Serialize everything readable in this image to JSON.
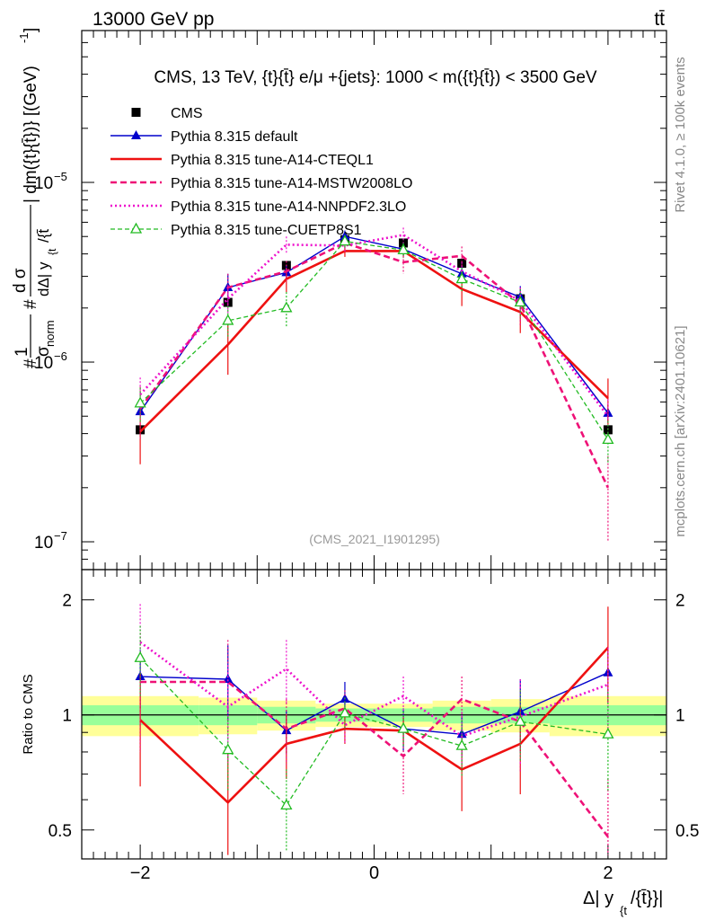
{
  "header": {
    "energy_label": "13000 GeV pp",
    "process_label": "tt̄",
    "rivet_label": "Rivet 4.1.0, ≥ 100k events",
    "site_label": "mcplots.cern.ch [arXiv:2401.10621]",
    "analysis_tag": "(CMS_2021_I1901295)"
  },
  "colors": {
    "cms": "#000000",
    "default": "#0000cc",
    "cteql1": "#ee1111",
    "mstw": "#ee1177",
    "nnpdf": "#ee11cc",
    "cuetp": "#22bb22",
    "band_inner": "#99ff99",
    "band_outer": "#ffff99"
  },
  "chart_data": [
    {
      "type": "line",
      "panel": "main",
      "title": "CMS, 13 TeV, {t}{t̄} e/μ +{jets}: 1000 < m({t}{t̄}) < 3500 GeV",
      "ylabel_parts": {
        "frac1_num": "#",
        "frac1_one": "1",
        "frac1_den": "σ",
        "frac1_den_sub": "norm",
        "frac2_num_a": "#",
        "frac2_num_b": "d σ",
        "frac2_den": "dΔ| y",
        "frac2_den_sub": "{t",
        "frac2_den_tail": "/{t̄",
        "tail": "| dm({t}{t̄})} [(GeV)",
        "tail_exp": "-1",
        "tail_close": "]"
      },
      "xlabel_parts": {
        "main": "Δ| y",
        "sub": "{t",
        "tail": "/{t̄}}|"
      },
      "yscale": "log",
      "ylim": [
        7e-08,
        7e-05
      ],
      "xlim": [
        -2.5,
        2.5
      ],
      "ytick_labels": [
        {
          "value": 1e-05,
          "base": "10",
          "exp": "−5"
        },
        {
          "value": 1e-06,
          "base": "10",
          "exp": "−6"
        },
        {
          "value": 1e-07,
          "base": "10",
          "exp": "−7"
        }
      ],
      "x": [
        -2.0,
        -1.25,
        -0.75,
        -0.25,
        0.25,
        0.75,
        1.25,
        2.0
      ],
      "series": [
        {
          "key": "cms",
          "name": "CMS",
          "style": "points",
          "values": [
            4.2e-07,
            2.15e-06,
            3.45e-06,
            4.8e-06,
            4.6e-06,
            3.55e-06,
            2.25e-06,
            4.2e-07
          ],
          "err": [
            1.2e-08,
            1e-07,
            1e-07,
            1.5e-07,
            1.5e-07,
            1e-07,
            1e-07,
            1.2e-08
          ]
        },
        {
          "key": "default",
          "name": "Pythia 8.315 default",
          "style": "solid-triangle",
          "values": [
            5.3e-07,
            2.6e-06,
            3.15e-06,
            5e-06,
            4.25e-06,
            3.1e-06,
            2.3e-06,
            5.2e-07
          ],
          "err": [
            3e-08,
            5e-07,
            3e-07,
            4e-07,
            3.5e-07,
            3e-07,
            3.5e-07,
            6e-08
          ]
        },
        {
          "key": "cteql1",
          "name": "Pythia 8.315 tune-A14-CTEQL1",
          "style": "solid-thick",
          "values": [
            4.1e-07,
            1.25e-06,
            2.9e-06,
            4.15e-06,
            4.15e-06,
            2.55e-06,
            1.9e-06,
            6.3e-07
          ],
          "err": [
            1.4e-07,
            4e-07,
            4.5e-07,
            3e-07,
            3e-07,
            5e-07,
            4.5e-07,
            1.8e-07
          ]
        },
        {
          "key": "mstw",
          "name": "Pythia 8.315 tune-A14-MSTW2008LO",
          "style": "dashed-thick",
          "values": [
            5.5e-07,
            2.6e-06,
            3.2e-06,
            4.6e-06,
            3.6e-06,
            3.9e-06,
            2.1e-06,
            2e-07
          ],
          "err": [
            1.8e-07,
            5e-07,
            4.5e-07,
            4e-07,
            5e-07,
            5e-07,
            5e-07,
            1e-07
          ]
        },
        {
          "key": "nnpdf",
          "name": "Pythia 8.315 tune-A14-NNPDF2.3LO",
          "style": "dotted-thick",
          "values": [
            6.6e-07,
            2.25e-06,
            4.5e-06,
            4.45e-06,
            5.1e-06,
            3.2e-06,
            2.2e-06,
            5e-07
          ],
          "err": [
            1.6e-07,
            4e-07,
            5e-07,
            4e-07,
            5e-07,
            4e-07,
            4e-07,
            1.2e-07
          ]
        },
        {
          "key": "cuetp",
          "name": "Pythia 8.315 tune-CUETP8S1",
          "style": "dashed-open-triangle",
          "values": [
            5.9e-07,
            1.7e-06,
            2e-06,
            4.7e-06,
            4.2e-06,
            2.9e-06,
            2.15e-06,
            3.7e-07
          ],
          "err": [
            1.3e-07,
            3.5e-07,
            4.5e-07,
            4e-07,
            4e-07,
            4.5e-07,
            4e-07,
            1e-07
          ]
        }
      ]
    },
    {
      "type": "line",
      "panel": "ratio",
      "ylabel": "Ratio to CMS",
      "yscale": "log",
      "ylim": [
        0.42,
        2.4
      ],
      "yticks": [
        0.5,
        1,
        2
      ],
      "ytick_labels": [
        "0.5",
        "1",
        "2"
      ],
      "xticks": [
        -2,
        0,
        2
      ],
      "xtick_labels": [
        "−2",
        "0",
        "2"
      ],
      "x": [
        -2.0,
        -1.25,
        -0.75,
        -0.25,
        0.25,
        0.75,
        1.25,
        2.0
      ],
      "bands": {
        "edges": [
          -2.5,
          -1.5,
          -1.0,
          -0.5,
          0.0,
          0.5,
          1.0,
          1.5,
          2.5
        ],
        "inner_lo": [
          0.94,
          0.94,
          0.95,
          0.96,
          0.96,
          0.95,
          0.95,
          0.94
        ],
        "inner_hi": [
          1.06,
          1.06,
          1.05,
          1.04,
          1.04,
          1.05,
          1.05,
          1.06
        ],
        "outer_lo": [
          0.88,
          0.89,
          0.91,
          0.93,
          0.93,
          0.91,
          0.9,
          0.88
        ],
        "outer_hi": [
          1.12,
          1.11,
          1.09,
          1.07,
          1.07,
          1.09,
          1.1,
          1.12
        ]
      },
      "series": [
        {
          "key": "default",
          "values": [
            1.26,
            1.24,
            0.91,
            1.1,
            0.92,
            0.89,
            1.02,
            1.29
          ],
          "err": [
            0.22,
            0.28,
            0.12,
            0.12,
            0.12,
            0.11,
            0.22,
            0.22
          ]
        },
        {
          "key": "cteql1",
          "values": [
            0.97,
            0.59,
            0.84,
            0.92,
            0.91,
            0.72,
            0.84,
            1.5
          ],
          "err": [
            0.32,
            0.24,
            0.16,
            0.08,
            0.08,
            0.16,
            0.22,
            0.42
          ]
        },
        {
          "key": "mstw",
          "values": [
            1.22,
            1.22,
            0.92,
            1.04,
            0.78,
            1.1,
            0.96,
            0.48
          ],
          "err": [
            0.42,
            0.35,
            0.18,
            0.12,
            0.16,
            0.16,
            0.25,
            0.2
          ]
        },
        {
          "key": "nnpdf",
          "values": [
            1.55,
            1.05,
            1.32,
            0.94,
            1.12,
            0.88,
            0.99,
            1.2
          ],
          "err": [
            0.4,
            0.3,
            0.25,
            0.1,
            0.14,
            0.14,
            0.25,
            0.3
          ]
        },
        {
          "key": "cuetp",
          "values": [
            1.41,
            0.81,
            0.58,
            1.01,
            0.92,
            0.83,
            0.96,
            0.89
          ],
          "err": [
            0.3,
            0.18,
            0.14,
            0.1,
            0.1,
            0.14,
            0.2,
            0.26
          ]
        }
      ]
    }
  ]
}
